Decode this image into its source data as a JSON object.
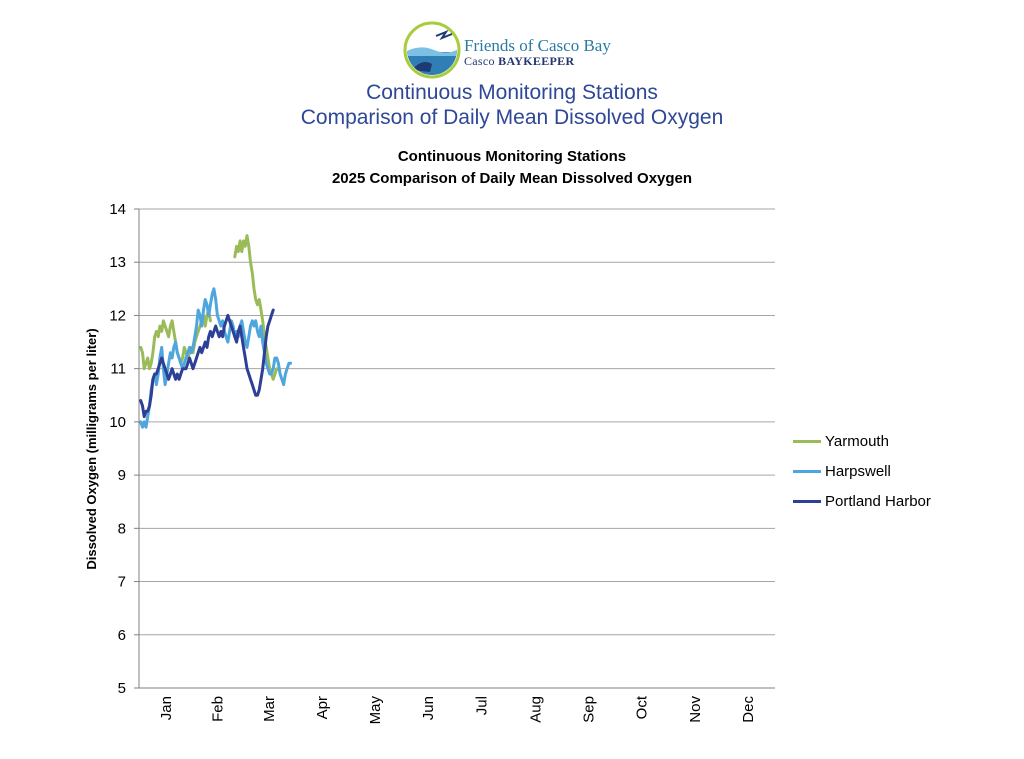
{
  "header": {
    "logo_name": "Friends of Casco Bay",
    "logo_sub_prefix": "Casco ",
    "logo_sub_strong": "BAYKEEPER",
    "title_line1": "Continuous Monitoring Stations",
    "title_line2": "Comparison of Daily Mean Dissolved Oxygen"
  },
  "chart_data": {
    "type": "line",
    "title_line1": "Continuous Monitoring Stations",
    "title_line2": "2025 Comparison of Daily Mean Dissolved Oxygen",
    "xlabel": "",
    "ylabel": "Dissolved Oxygen (milligrams per liter)",
    "ylim": [
      5,
      14
    ],
    "yticks": [
      5,
      6,
      7,
      8,
      9,
      10,
      11,
      12,
      13,
      14
    ],
    "xlim_days": [
      0,
      365
    ],
    "grid": "horizontal",
    "legend_position": "right",
    "x_categories": [
      "Jan",
      "Feb",
      "Mar",
      "Apr",
      "May",
      "Jun",
      "Jul",
      "Aug",
      "Sep",
      "Oct",
      "Nov",
      "Dec"
    ],
    "series": [
      {
        "name": "Yarmouth",
        "color": "#9bbb59",
        "segments": [
          [
            [
              1,
              11.4
            ],
            [
              2,
              11.3
            ],
            [
              3,
              11.0
            ],
            [
              4,
              11.1
            ],
            [
              5,
              11.2
            ],
            [
              6,
              11.0
            ],
            [
              7,
              11.1
            ],
            [
              8,
              11.3
            ],
            [
              9,
              11.6
            ],
            [
              10,
              11.7
            ],
            [
              11,
              11.6
            ],
            [
              12,
              11.8
            ],
            [
              13,
              11.7
            ],
            [
              14,
              11.9
            ],
            [
              15,
              11.8
            ],
            [
              16,
              11.7
            ],
            [
              17,
              11.6
            ],
            [
              18,
              11.8
            ],
            [
              19,
              11.9
            ],
            [
              20,
              11.7
            ],
            [
              21,
              11.5
            ],
            [
              22,
              11.3
            ],
            [
              23,
              11.2
            ],
            [
              24,
              11.1
            ],
            [
              25,
              11.2
            ],
            [
              26,
              11.4
            ],
            [
              27,
              11.3
            ],
            [
              28,
              11.2
            ],
            [
              29,
              11.3
            ],
            [
              30,
              11.4
            ],
            [
              31,
              11.3
            ],
            [
              32,
              11.5
            ],
            [
              33,
              11.6
            ],
            [
              34,
              11.7
            ],
            [
              35,
              11.8
            ],
            [
              36,
              11.9
            ],
            [
              37,
              12.0
            ],
            [
              38,
              11.8
            ],
            [
              39,
              12.0
            ],
            [
              40,
              12.1
            ],
            [
              41,
              11.9
            ]
          ],
          [
            [
              55,
              13.1
            ],
            [
              56,
              13.3
            ],
            [
              57,
              13.2
            ],
            [
              58,
              13.4
            ],
            [
              59,
              13.2
            ],
            [
              60,
              13.4
            ],
            [
              61,
              13.3
            ],
            [
              62,
              13.5
            ],
            [
              63,
              13.3
            ],
            [
              64,
              13.0
            ],
            [
              65,
              12.8
            ],
            [
              66,
              12.5
            ],
            [
              67,
              12.3
            ],
            [
              68,
              12.2
            ],
            [
              69,
              12.3
            ],
            [
              70,
              12.1
            ],
            [
              71,
              11.9
            ],
            [
              72,
              11.6
            ],
            [
              73,
              11.4
            ],
            [
              74,
              11.2
            ],
            [
              75,
              11.0
            ],
            [
              76,
              10.9
            ],
            [
              77,
              10.8
            ],
            [
              78,
              10.9
            ],
            [
              79,
              11.0
            ],
            [
              80,
              11.0
            ]
          ]
        ]
      },
      {
        "name": "Harpswell",
        "color": "#4fa6de",
        "segments": [
          [
            [
              1,
              10.0
            ],
            [
              2,
              9.9
            ],
            [
              3,
              10.0
            ],
            [
              4,
              9.9
            ],
            [
              5,
              10.1
            ],
            [
              6,
              10.3
            ],
            [
              7,
              10.6
            ],
            [
              8,
              10.8
            ],
            [
              9,
              10.9
            ],
            [
              10,
              10.7
            ],
            [
              11,
              10.9
            ],
            [
              12,
              11.2
            ],
            [
              13,
              11.4
            ],
            [
              14,
              11.0
            ],
            [
              15,
              10.7
            ],
            [
              16,
              10.9
            ],
            [
              17,
              11.1
            ],
            [
              18,
              11.3
            ],
            [
              19,
              11.2
            ],
            [
              20,
              11.4
            ],
            [
              21,
              11.5
            ],
            [
              22,
              11.3
            ],
            [
              23,
              11.2
            ],
            [
              24,
              11.1
            ],
            [
              25,
              11.0
            ],
            [
              26,
              11.1
            ],
            [
              27,
              11.2
            ],
            [
              28,
              11.3
            ],
            [
              29,
              11.4
            ],
            [
              30,
              11.3
            ],
            [
              31,
              11.4
            ],
            [
              32,
              11.6
            ],
            [
              33,
              11.8
            ],
            [
              34,
              12.1
            ],
            [
              35,
              12.0
            ],
            [
              36,
              11.8
            ],
            [
              37,
              12.1
            ],
            [
              38,
              12.3
            ],
            [
              39,
              12.2
            ],
            [
              40,
              12.0
            ],
            [
              41,
              12.2
            ],
            [
              42,
              12.4
            ],
            [
              43,
              12.5
            ],
            [
              44,
              12.3
            ],
            [
              45,
              12.0
            ],
            [
              46,
              11.9
            ],
            [
              47,
              11.8
            ],
            [
              48,
              11.9
            ],
            [
              49,
              11.7
            ],
            [
              50,
              11.6
            ],
            [
              51,
              11.5
            ],
            [
              52,
              11.7
            ],
            [
              53,
              11.9
            ],
            [
              54,
              11.8
            ],
            [
              55,
              11.6
            ],
            [
              56,
              11.7
            ],
            [
              57,
              11.6
            ],
            [
              58,
              11.8
            ],
            [
              59,
              11.9
            ],
            [
              60,
              11.7
            ],
            [
              61,
              11.5
            ],
            [
              62,
              11.4
            ],
            [
              63,
              11.6
            ],
            [
              64,
              11.8
            ],
            [
              65,
              11.9
            ],
            [
              66,
              11.8
            ],
            [
              67,
              11.9
            ],
            [
              68,
              11.7
            ],
            [
              69,
              11.6
            ],
            [
              70,
              11.8
            ],
            [
              71,
              11.5
            ],
            [
              72,
              11.3
            ],
            [
              73,
              11.1
            ],
            [
              74,
              11.0
            ],
            [
              75,
              10.9
            ],
            [
              76,
              10.9
            ],
            [
              77,
              11.0
            ],
            [
              78,
              11.2
            ],
            [
              79,
              11.2
            ],
            [
              80,
              11.1
            ],
            [
              81,
              10.9
            ],
            [
              82,
              10.8
            ],
            [
              83,
              10.7
            ],
            [
              84,
              10.9
            ],
            [
              85,
              11.0
            ],
            [
              86,
              11.1
            ],
            [
              87,
              11.1
            ]
          ]
        ]
      },
      {
        "name": "Portland Harbor",
        "color": "#2e3f96",
        "segments": [
          [
            [
              1,
              10.4
            ],
            [
              2,
              10.3
            ],
            [
              3,
              10.1
            ],
            [
              4,
              10.2
            ],
            [
              5,
              10.2
            ],
            [
              6,
              10.3
            ],
            [
              7,
              10.5
            ],
            [
              8,
              10.8
            ],
            [
              9,
              10.9
            ],
            [
              10,
              10.9
            ],
            [
              11,
              11.0
            ],
            [
              12,
              11.1
            ],
            [
              13,
              11.2
            ],
            [
              14,
              11.1
            ],
            [
              15,
              11.0
            ],
            [
              16,
              10.9
            ],
            [
              17,
              10.8
            ],
            [
              18,
              10.9
            ],
            [
              19,
              11.0
            ],
            [
              20,
              10.9
            ],
            [
              21,
              10.8
            ],
            [
              22,
              10.9
            ],
            [
              23,
              10.8
            ],
            [
              24,
              10.9
            ],
            [
              25,
              11.0
            ],
            [
              26,
              11.0
            ],
            [
              27,
              11.0
            ],
            [
              28,
              11.1
            ],
            [
              29,
              11.2
            ],
            [
              30,
              11.1
            ],
            [
              31,
              11.0
            ],
            [
              32,
              11.1
            ],
            [
              33,
              11.2
            ],
            [
              34,
              11.3
            ],
            [
              35,
              11.4
            ],
            [
              36,
              11.3
            ],
            [
              37,
              11.4
            ],
            [
              38,
              11.5
            ],
            [
              39,
              11.4
            ],
            [
              40,
              11.6
            ],
            [
              41,
              11.7
            ],
            [
              42,
              11.6
            ],
            [
              43,
              11.7
            ],
            [
              44,
              11.8
            ],
            [
              45,
              11.7
            ],
            [
              46,
              11.6
            ],
            [
              47,
              11.7
            ],
            [
              48,
              11.6
            ],
            [
              49,
              11.8
            ],
            [
              50,
              11.9
            ],
            [
              51,
              12.0
            ],
            [
              52,
              11.9
            ],
            [
              53,
              11.8
            ],
            [
              54,
              11.7
            ],
            [
              55,
              11.6
            ],
            [
              56,
              11.5
            ],
            [
              57,
              11.7
            ],
            [
              58,
              11.8
            ],
            [
              59,
              11.6
            ],
            [
              60,
              11.4
            ],
            [
              61,
              11.2
            ],
            [
              62,
              11.0
            ],
            [
              63,
              10.9
            ],
            [
              64,
              10.8
            ],
            [
              65,
              10.7
            ],
            [
              66,
              10.6
            ],
            [
              67,
              10.5
            ],
            [
              68,
              10.5
            ],
            [
              69,
              10.6
            ],
            [
              70,
              10.8
            ],
            [
              71,
              11.0
            ],
            [
              72,
              11.3
            ],
            [
              73,
              11.6
            ],
            [
              74,
              11.8
            ],
            [
              75,
              11.9
            ],
            [
              76,
              12.0
            ],
            [
              77,
              12.1
            ]
          ]
        ]
      }
    ]
  }
}
